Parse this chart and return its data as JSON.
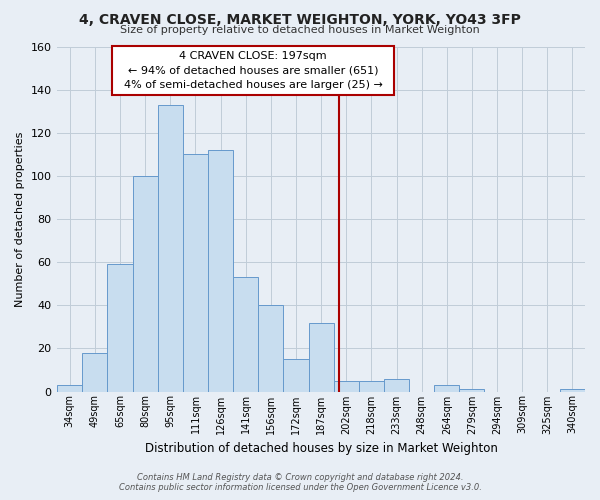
{
  "title": "4, CRAVEN CLOSE, MARKET WEIGHTON, YORK, YO43 3FP",
  "subtitle": "Size of property relative to detached houses in Market Weighton",
  "xlabel": "Distribution of detached houses by size in Market Weighton",
  "ylabel": "Number of detached properties",
  "bar_labels": [
    "34sqm",
    "49sqm",
    "65sqm",
    "80sqm",
    "95sqm",
    "111sqm",
    "126sqm",
    "141sqm",
    "156sqm",
    "172sqm",
    "187sqm",
    "202sqm",
    "218sqm",
    "233sqm",
    "248sqm",
    "264sqm",
    "279sqm",
    "294sqm",
    "309sqm",
    "325sqm",
    "340sqm"
  ],
  "bar_values": [
    3,
    18,
    59,
    100,
    133,
    110,
    112,
    53,
    40,
    15,
    32,
    5,
    5,
    6,
    0,
    3,
    1,
    0,
    0,
    0,
    1
  ],
  "bar_color": "#c8ddef",
  "bar_edge_color": "#6699cc",
  "ylim": [
    0,
    160
  ],
  "yticks": [
    0,
    20,
    40,
    60,
    80,
    100,
    120,
    140,
    160
  ],
  "vline_x": 10.72,
  "vline_color": "#aa0000",
  "annotation_title": "4 CRAVEN CLOSE: 197sqm",
  "annotation_line1": "← 94% of detached houses are smaller (651)",
  "annotation_line2": "4% of semi-detached houses are larger (25) →",
  "annotation_box_edge": "#aa0000",
  "footnote1": "Contains HM Land Registry data © Crown copyright and database right 2024.",
  "footnote2": "Contains public sector information licensed under the Open Government Licence v3.0.",
  "background_color": "#e8eef5",
  "plot_bg_color": "#e8eef5",
  "grid_color": "#c0ccd8"
}
